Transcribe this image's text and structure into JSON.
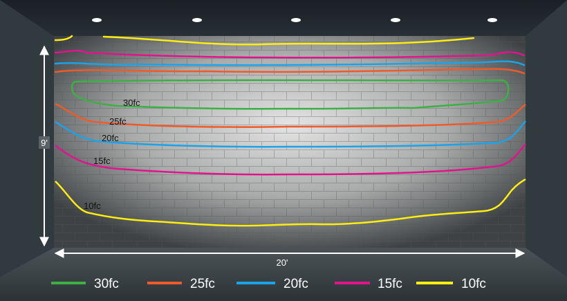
{
  "dimensions": {
    "height_label": "9'",
    "width_label": "20'"
  },
  "contours": [
    {
      "label": "30fc",
      "color": "#3cb043"
    },
    {
      "label": "25fc",
      "color": "#ef5a2a"
    },
    {
      "label": "20fc",
      "color": "#1aa3e8"
    },
    {
      "label": "15fc",
      "color": "#e0148c"
    },
    {
      "label": "10fc",
      "color": "#ffee10"
    }
  ],
  "legend": [
    {
      "label": "30fc",
      "color": "#3cb043"
    },
    {
      "label": "25fc",
      "color": "#ef5a2a"
    },
    {
      "label": "20fc",
      "color": "#1aa3e8"
    },
    {
      "label": "15fc",
      "color": "#e0148c"
    },
    {
      "label": "10fc",
      "color": "#ffee10"
    }
  ]
}
